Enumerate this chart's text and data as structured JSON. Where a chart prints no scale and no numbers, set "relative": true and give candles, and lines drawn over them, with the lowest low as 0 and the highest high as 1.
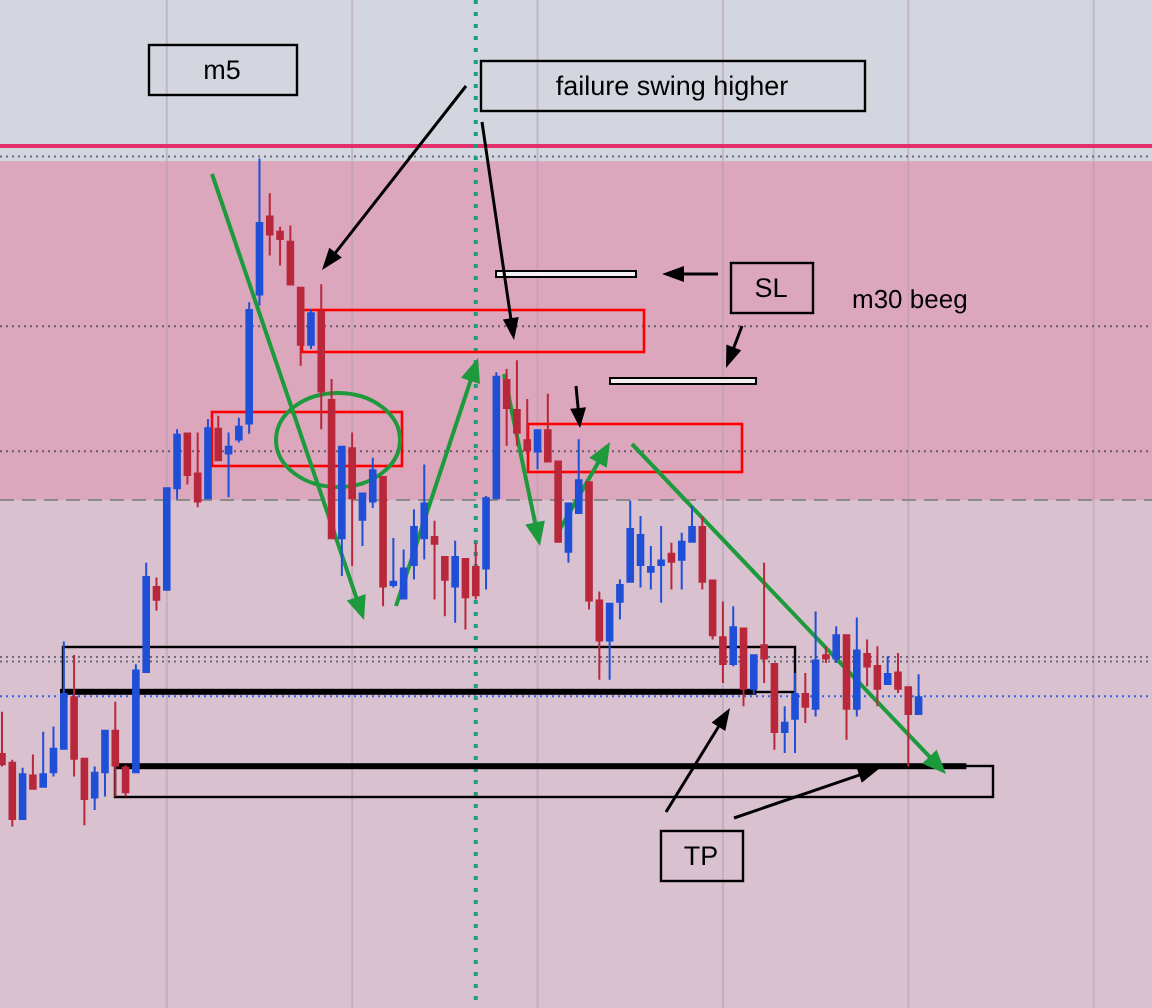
{
  "chart_data": {
    "type": "candlestick",
    "relative": true,
    "grid": "x",
    "categories": [
      null,
      null,
      null,
      null,
      null,
      null,
      null,
      null,
      null,
      null,
      null,
      null,
      null,
      null,
      null,
      null,
      null,
      null,
      null,
      null,
      null,
      null,
      null,
      null,
      null,
      null,
      null,
      null,
      null,
      null,
      null,
      null,
      null,
      null,
      null,
      null,
      null,
      null,
      null,
      null,
      null,
      null,
      null,
      null,
      null,
      null,
      null,
      null,
      null,
      null,
      null,
      null,
      null,
      null,
      null,
      null,
      null,
      null,
      null,
      null,
      null,
      null,
      null,
      null,
      null,
      null,
      null,
      null,
      null,
      null,
      null,
      null,
      null,
      null,
      null,
      null,
      null,
      null,
      null,
      null,
      null,
      null,
      null,
      null,
      null,
      null,
      null,
      null,
      null,
      null
    ],
    "ohlc": [
      [
        0.11,
        0.172,
        0.09,
        0.092
      ],
      [
        0.097,
        0.1,
        0.0,
        0.01
      ],
      [
        0.01,
        0.088,
        0.01,
        0.08
      ],
      [
        0.078,
        0.108,
        0.055,
        0.055
      ],
      [
        0.058,
        0.142,
        0.058,
        0.08
      ],
      [
        0.08,
        0.15,
        0.075,
        0.118
      ],
      [
        0.115,
        0.277,
        0.115,
        0.2
      ],
      [
        0.195,
        0.257,
        0.075,
        0.1
      ],
      [
        0.103,
        0.103,
        0.002,
        0.04
      ],
      [
        0.042,
        0.09,
        0.025,
        0.082
      ],
      [
        0.08,
        0.145,
        0.045,
        0.145
      ],
      [
        0.145,
        0.187,
        0.045,
        0.09
      ],
      [
        0.09,
        0.092,
        0.045,
        0.05
      ],
      [
        0.08,
        0.243,
        0.08,
        0.235
      ],
      [
        0.23,
        0.395,
        0.23,
        0.375
      ],
      [
        0.36,
        0.373,
        0.323,
        0.338
      ],
      [
        0.353,
        0.508,
        0.353,
        0.508
      ],
      [
        0.505,
        0.595,
        0.49,
        0.588
      ],
      [
        0.59,
        0.59,
        0.512,
        0.525
      ],
      [
        0.53,
        0.59,
        0.478,
        0.485
      ],
      [
        0.49,
        0.61,
        0.49,
        0.598
      ],
      [
        0.597,
        0.615,
        0.547,
        0.547
      ],
      [
        0.557,
        0.59,
        0.493,
        0.57
      ],
      [
        0.578,
        0.612,
        0.575,
        0.6
      ],
      [
        0.602,
        0.785,
        0.588,
        0.775
      ],
      [
        0.795,
        1.0,
        0.78,
        0.905
      ],
      [
        0.915,
        0.948,
        0.855,
        0.885
      ],
      [
        0.892,
        0.898,
        0.84,
        0.878
      ],
      [
        0.877,
        0.9,
        0.81,
        0.81
      ],
      [
        0.808,
        0.808,
        0.69,
        0.72
      ],
      [
        0.72,
        0.775,
        0.715,
        0.77
      ],
      [
        0.772,
        0.812,
        0.595,
        0.65
      ],
      [
        0.64,
        0.67,
        0.43,
        0.43
      ],
      [
        0.43,
        0.57,
        0.375,
        0.57
      ],
      [
        0.568,
        0.59,
        0.39,
        0.49
      ],
      [
        0.458,
        0.5,
        0.42,
        0.5
      ],
      [
        0.485,
        0.552,
        0.477,
        0.535
      ],
      [
        0.525,
        0.525,
        0.33,
        0.358
      ],
      [
        0.36,
        0.432,
        0.358,
        0.368
      ],
      [
        0.34,
        0.415,
        0.34,
        0.388
      ],
      [
        0.39,
        0.475,
        0.37,
        0.45
      ],
      [
        0.43,
        0.542,
        0.4,
        0.485
      ],
      [
        0.435,
        0.458,
        0.34,
        0.422
      ],
      [
        0.405,
        0.405,
        0.315,
        0.368
      ],
      [
        0.358,
        0.428,
        0.305,
        0.405
      ],
      [
        0.402,
        0.402,
        0.295,
        0.342
      ],
      [
        0.39,
        0.425,
        0.34,
        0.345
      ],
      [
        0.385,
        0.495,
        0.355,
        0.493
      ],
      [
        0.49,
        0.68,
        0.49,
        0.675
      ],
      [
        0.67,
        0.685,
        0.57,
        0.625
      ],
      [
        0.625,
        0.698,
        0.57,
        0.588
      ],
      [
        0.58,
        0.64,
        0.558,
        0.562
      ],
      [
        0.56,
        0.595,
        0.535,
        0.595
      ],
      [
        0.595,
        0.648,
        0.545,
        0.545
      ],
      [
        0.548,
        0.548,
        0.425,
        0.425
      ],
      [
        0.41,
        0.485,
        0.395,
        0.485
      ],
      [
        0.468,
        0.58,
        0.468,
        0.52
      ],
      [
        0.517,
        0.517,
        0.325,
        0.337
      ],
      [
        0.34,
        0.352,
        0.22,
        0.277
      ],
      [
        0.277,
        0.335,
        0.22,
        0.335
      ],
      [
        0.335,
        0.37,
        0.31,
        0.363
      ],
      [
        0.365,
        0.488,
        0.365,
        0.447
      ],
      [
        0.39,
        0.465,
        0.358,
        0.438
      ],
      [
        0.38,
        0.42,
        0.355,
        0.39
      ],
      [
        0.39,
        0.45,
        0.335,
        0.4
      ],
      [
        0.41,
        0.425,
        0.355,
        0.395
      ],
      [
        0.398,
        0.44,
        0.355,
        0.428
      ],
      [
        0.425,
        0.48,
        0.425,
        0.45
      ],
      [
        0.45,
        0.465,
        0.355,
        0.365
      ],
      [
        0.37,
        0.37,
        0.28,
        0.285
      ],
      [
        0.285,
        0.337,
        0.215,
        0.242
      ],
      [
        0.242,
        0.33,
        0.24,
        0.3
      ],
      [
        0.298,
        0.298,
        0.18,
        0.205
      ],
      [
        0.205,
        0.258,
        0.198,
        0.258
      ],
      [
        0.273,
        0.395,
        0.215,
        0.25
      ],
      [
        0.245,
        0.245,
        0.115,
        0.14
      ],
      [
        0.14,
        0.18,
        0.11,
        0.157
      ],
      [
        0.16,
        0.23,
        0.11,
        0.2
      ],
      [
        0.2,
        0.23,
        0.155,
        0.178
      ],
      [
        0.175,
        0.322,
        0.165,
        0.25
      ],
      [
        0.258,
        0.27,
        0.245,
        0.25
      ],
      [
        0.25,
        0.3,
        0.245,
        0.288
      ],
      [
        0.288,
        0.288,
        0.13,
        0.175
      ],
      [
        0.175,
        0.313,
        0.165,
        0.265
      ],
      [
        0.26,
        0.28,
        0.21,
        0.238
      ],
      [
        0.242,
        0.27,
        0.18,
        0.205
      ],
      [
        0.212,
        0.255,
        0.212,
        0.23
      ],
      [
        0.232,
        0.26,
        0.2,
        0.205
      ],
      [
        0.21,
        0.21,
        0.09,
        0.167
      ],
      [
        0.167,
        0.228,
        0.167,
        0.195
      ]
    ],
    "colors": [
      "#b8283a",
      "#b8283a",
      "#1f4fd6",
      "#b8283a",
      "#1f4fd6",
      "#1f4fd6",
      "#1f4fd6",
      "#b8283a",
      "#b8283a",
      "#1f4fd6",
      "#1f4fd6",
      "#b8283a",
      "#b8283a",
      "#1f4fd6",
      "#1f4fd6",
      "#b8283a",
      "#1f4fd6",
      "#1f4fd6",
      "#b8283a",
      "#b8283a",
      "#1f4fd6",
      "#b8283a",
      "#1f4fd6",
      "#1f4fd6",
      "#1f4fd6",
      "#1f4fd6",
      "#b8283a",
      "#b8283a",
      "#b8283a",
      "#b8283a",
      "#1f4fd6",
      "#b8283a",
      "#b8283a",
      "#1f4fd6",
      "#b8283a",
      "#1f4fd6",
      "#1f4fd6",
      "#b8283a",
      "#1f4fd6",
      "#1f4fd6",
      "#1f4fd6",
      "#1f4fd6",
      "#b8283a",
      "#b8283a",
      "#1f4fd6",
      "#b8283a",
      "#b8283a",
      "#1f4fd6",
      "#1f4fd6",
      "#b8283a",
      "#b8283a",
      "#b8283a",
      "#1f4fd6",
      "#b8283a",
      "#b8283a",
      "#1f4fd6",
      "#1f4fd6",
      "#b8283a",
      "#b8283a",
      "#1f4fd6",
      "#1f4fd6",
      "#1f4fd6",
      "#1f4fd6",
      "#1f4fd6",
      "#1f4fd6",
      "#b8283a",
      "#1f4fd6",
      "#1f4fd6",
      "#b8283a",
      "#b8283a",
      "#b8283a",
      "#1f4fd6",
      "#b8283a",
      "#1f4fd6",
      "#b8283a",
      "#b8283a",
      "#1f4fd6",
      "#1f4fd6",
      "#b8283a",
      "#1f4fd6",
      "#b8283a",
      "#1f4fd6",
      "#b8283a",
      "#1f4fd6",
      "#b8283a",
      "#b8283a",
      "#1f4fd6",
      "#b8283a",
      "#b8283a",
      "#1f4fd6"
    ],
    "bands": [
      {
        "axis": "y",
        "from": -0.272,
        "to": 0.996,
        "color": "#d9c1d0"
      },
      {
        "axis": "y",
        "from": 0.489,
        "to": 0.996,
        "color": "#dca6bd",
        "label": "m30 beeg"
      }
    ],
    "ref_lines": [
      {
        "axis": "y",
        "value": 1.019,
        "color": "#e4306a",
        "line_style": "solid"
      },
      {
        "axis": "y",
        "value": 1.003,
        "color": "#6b6b78",
        "line_style": "dotted"
      },
      {
        "axis": "y",
        "value": 0.749,
        "color": "#6b5a66",
        "line_style": "dotted"
      },
      {
        "axis": "y",
        "value": 0.562,
        "color": "#6b5a66",
        "line_style": "dotted"
      },
      {
        "axis": "y",
        "value": 0.489,
        "color": "#8a8a8a",
        "line_style": "dashed"
      },
      {
        "axis": "y",
        "value": 0.254,
        "color": "#6b6b78",
        "line_style": "dotted"
      },
      {
        "axis": "y",
        "value": 0.247,
        "color": "#6b6b78",
        "line_style": "dotted"
      },
      {
        "axis": "y",
        "value": 0.195,
        "color": "#2f5fe6",
        "line_style": "dotted"
      }
    ],
    "annotations": [
      "m5",
      "failure swing higher",
      "SL",
      "TP"
    ]
  }
}
